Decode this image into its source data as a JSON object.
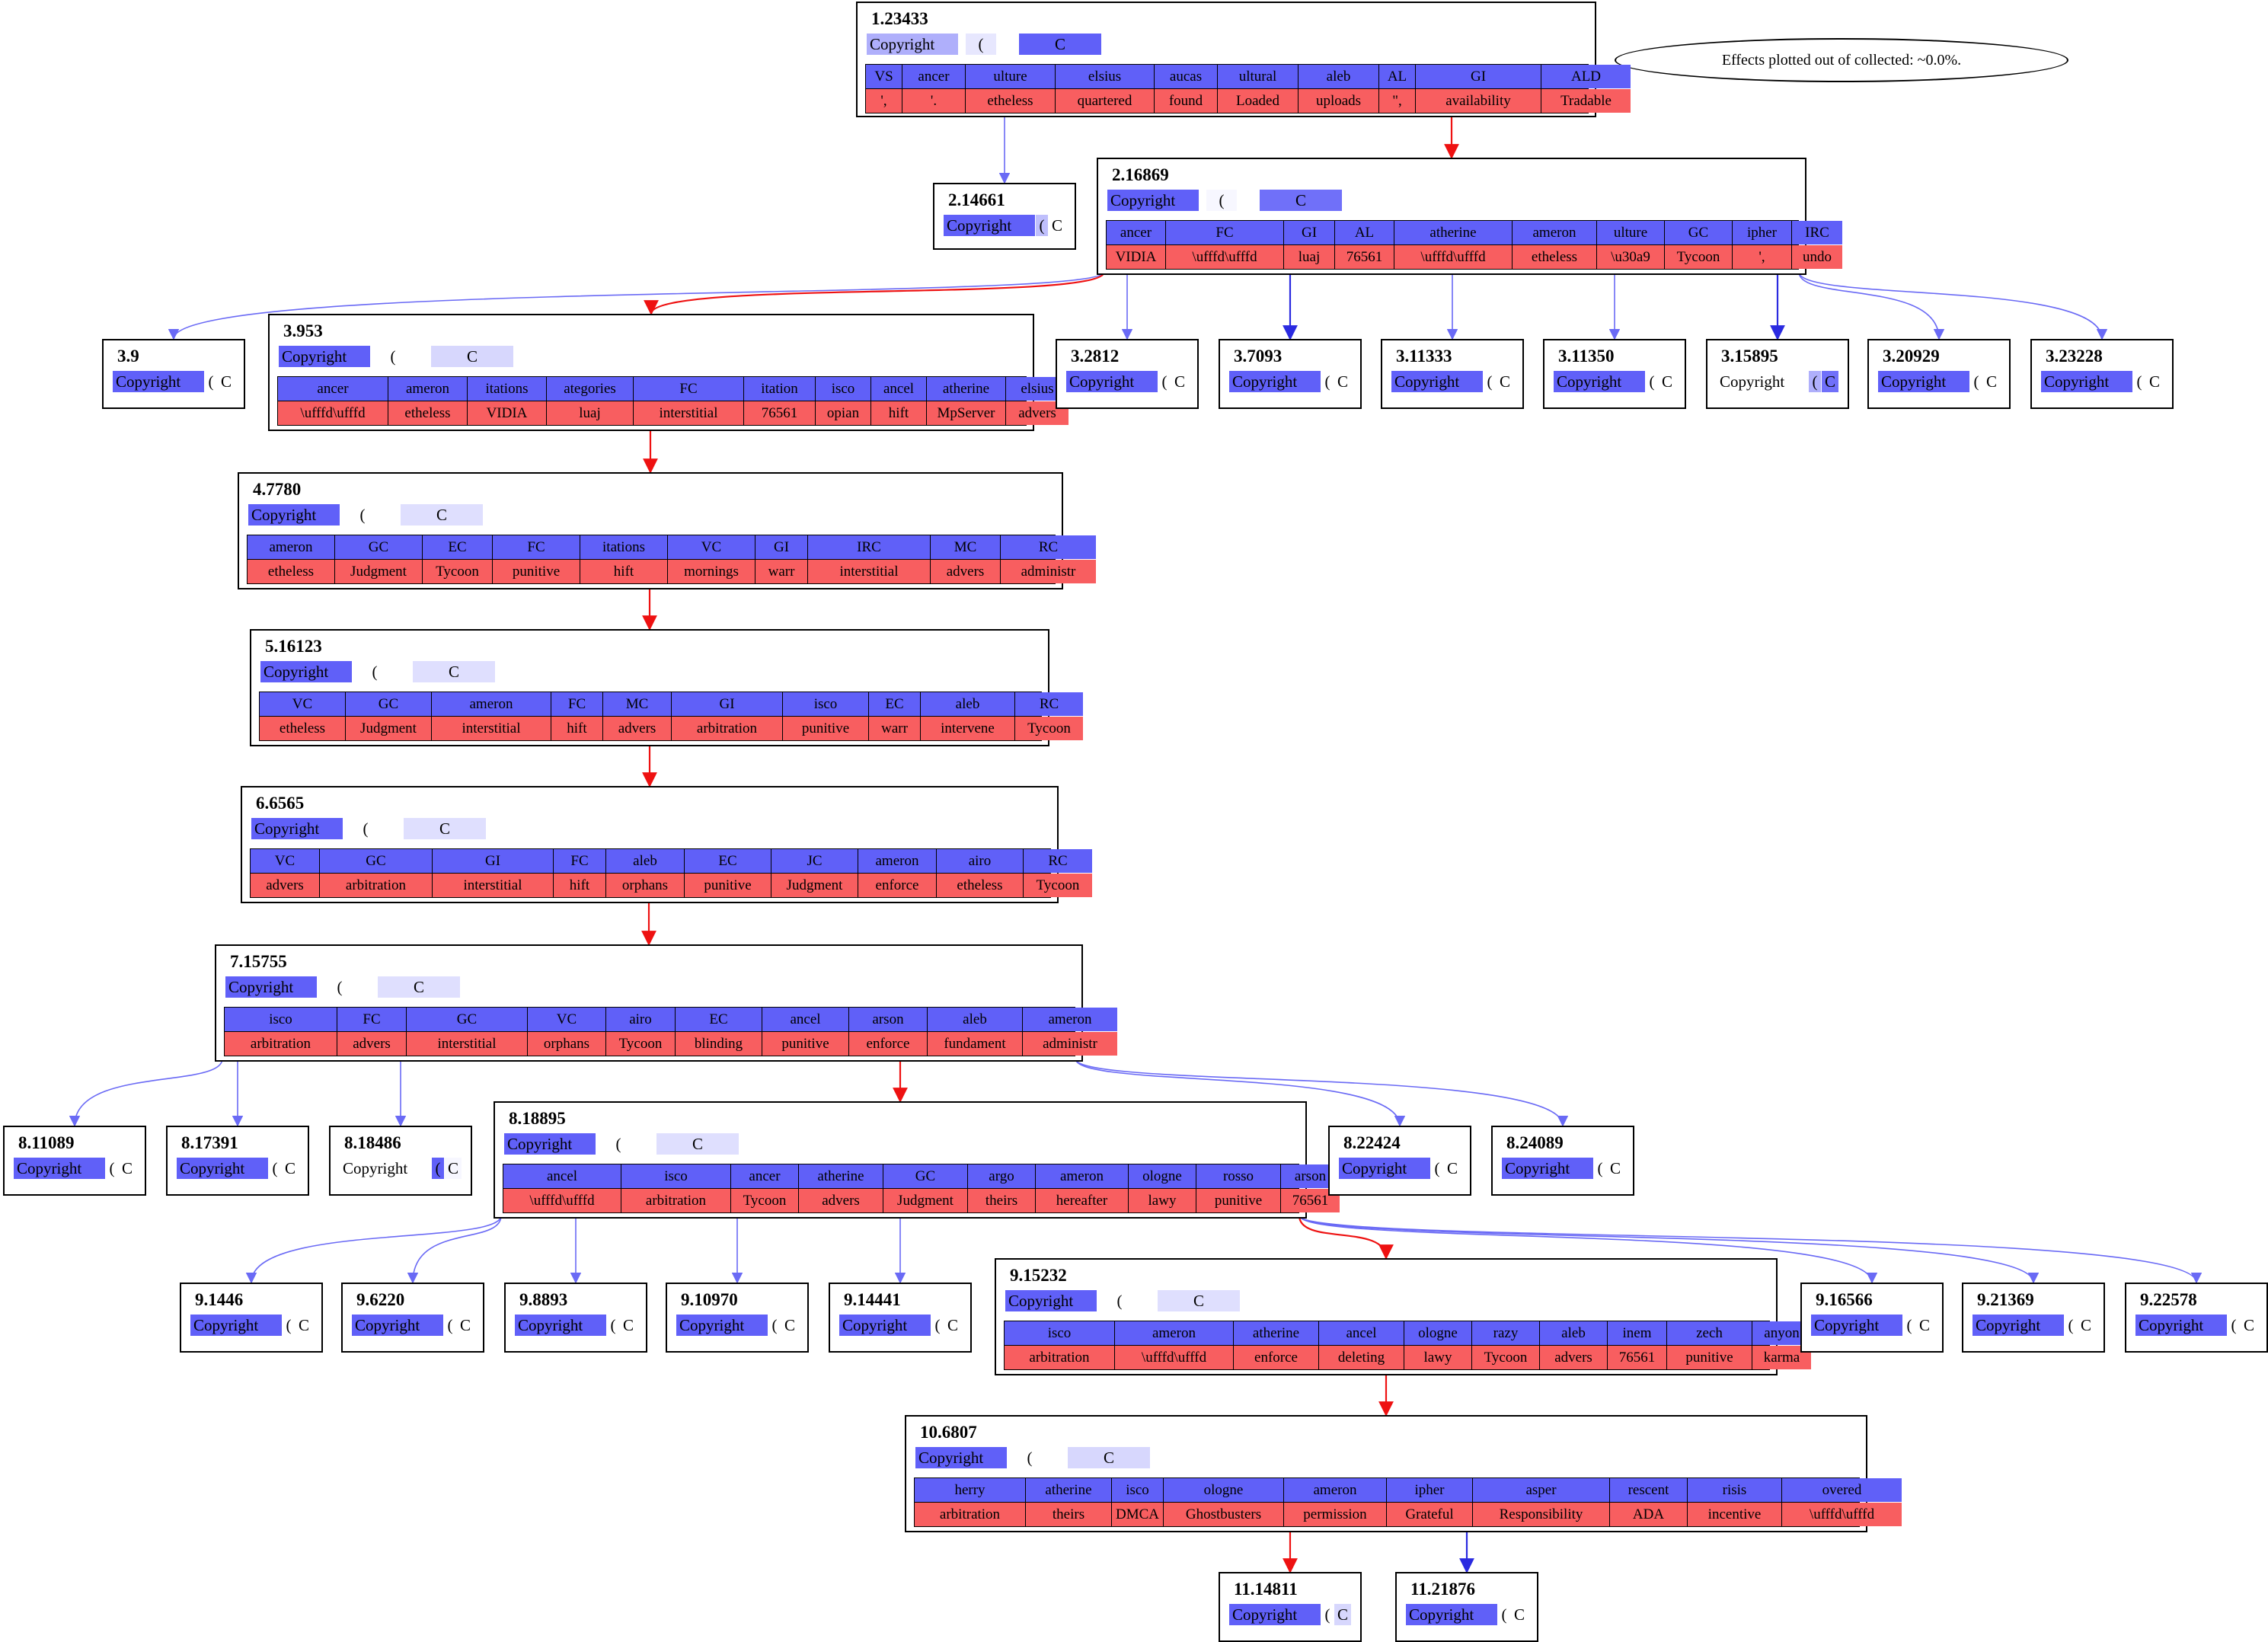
{
  "legend_text": "Effects plotted out of collected: ~0.0%.",
  "colors": {
    "blue_edge": "#6a6af5",
    "dark_blue_edge": "#2a2ae0",
    "red_edge": "#ee1111",
    "token_blue": "#6060f8",
    "token_red": "#f85e60"
  },
  "seq_tokens": [
    "Copyright",
    "(",
    "C"
  ],
  "nodes": [
    {
      "id": "n1",
      "label": "1.23433",
      "seq_weights": [
        0.5,
        0.15,
        1.0
      ],
      "row1": [
        "VS",
        "ancer",
        "ulture",
        "elsius",
        "aucas",
        "ultural",
        "aleb",
        "AL",
        "GI",
        "ALD"
      ],
      "row2": [
        "',",
        "'.",
        "etheless",
        "quartered",
        "found",
        "Loaded",
        "uploads",
        "\",",
        "availability",
        "Tradable"
      ]
    },
    {
      "id": "n2",
      "label": "2.14661",
      "seq_weights": [
        1.0,
        0.4,
        0.0
      ]
    },
    {
      "id": "n3",
      "label": "2.16869",
      "seq_weights": [
        1.0,
        0.05,
        0.9
      ],
      "row1": [
        "ancer",
        "FC",
        "GI",
        "AL",
        "atherine",
        "ameron",
        "ulture",
        "GC",
        "ipher",
        "IRC"
      ],
      "row2": [
        "VIDIA",
        "\\ufffd\\ufffd",
        "luaj",
        "76561",
        "\\ufffd\\ufffd",
        "etheless",
        "\\u30a9",
        "Tycoon",
        "',",
        "undo"
      ]
    },
    {
      "id": "n4",
      "label": "3.9",
      "seq_weights": [
        1.0,
        0.0,
        0.0
      ]
    },
    {
      "id": "n5",
      "label": "3.953",
      "seq_weights": [
        1.0,
        0.0,
        0.25
      ],
      "row1": [
        "ancer",
        "ameron",
        "itations",
        "ategories",
        "FC",
        "itation",
        "isco",
        "ancel",
        "atherine",
        "elsius"
      ],
      "row2": [
        "\\ufffd\\ufffd",
        "etheless",
        "VIDIA",
        "luaj",
        "interstitial",
        "76561",
        "opian",
        "hift",
        "MpServer",
        "advers"
      ]
    },
    {
      "id": "n6",
      "label": "3.2812",
      "seq_weights": [
        1.0,
        0.0,
        0.0
      ]
    },
    {
      "id": "n7",
      "label": "3.7093",
      "seq_weights": [
        1.0,
        0.0,
        0.0
      ]
    },
    {
      "id": "n8",
      "label": "3.11333",
      "seq_weights": [
        1.0,
        0.0,
        0.0
      ]
    },
    {
      "id": "n9",
      "label": "3.11350",
      "seq_weights": [
        1.0,
        0.0,
        0.0
      ]
    },
    {
      "id": "n10",
      "label": "3.15895",
      "seq_weights": [
        0.0,
        0.5,
        0.9
      ]
    },
    {
      "id": "n11",
      "label": "3.20929",
      "seq_weights": [
        1.0,
        0.0,
        0.0
      ]
    },
    {
      "id": "n12",
      "label": "3.23228",
      "seq_weights": [
        1.0,
        0.0,
        0.0
      ]
    },
    {
      "id": "n13",
      "label": "4.7780",
      "seq_weights": [
        1.0,
        0.0,
        0.2
      ],
      "row1": [
        "ameron",
        "GC",
        "EC",
        "FC",
        "itations",
        "VC",
        "GI",
        "IRC",
        "MC",
        "RC"
      ],
      "row2": [
        "etheless",
        "Judgment",
        "Tycoon",
        "punitive",
        "hift",
        "mornings",
        "warr",
        "interstitial",
        "advers",
        "administr"
      ]
    },
    {
      "id": "n14",
      "label": "5.16123",
      "seq_weights": [
        1.0,
        0.0,
        0.2
      ],
      "row1": [
        "VC",
        "GC",
        "ameron",
        "FC",
        "MC",
        "GI",
        "isco",
        "EC",
        "aleb",
        "RC"
      ],
      "row2": [
        "etheless",
        "Judgment",
        "interstitial",
        "hift",
        "advers",
        "arbitration",
        "punitive",
        "warr",
        "intervene",
        "Tycoon"
      ]
    },
    {
      "id": "n15",
      "label": "6.6565",
      "seq_weights": [
        1.0,
        0.0,
        0.2
      ],
      "row1": [
        "VC",
        "GC",
        "GI",
        "FC",
        "aleb",
        "EC",
        "JC",
        "ameron",
        "airo",
        "RC"
      ],
      "row2": [
        "advers",
        "arbitration",
        "interstitial",
        "hift",
        "orphans",
        "punitive",
        "Judgment",
        "enforce",
        "etheless",
        "Tycoon"
      ]
    },
    {
      "id": "n16",
      "label": "7.15755",
      "seq_weights": [
        1.0,
        0.0,
        0.2
      ],
      "row1": [
        "isco",
        "FC",
        "GC",
        "VC",
        "airo",
        "EC",
        "ancel",
        "arson",
        "aleb",
        "ameron"
      ],
      "row2": [
        "arbitration",
        "advers",
        "interstitial",
        "orphans",
        "Tycoon",
        "blinding",
        "punitive",
        "enforce",
        "fundament",
        "administr"
      ]
    },
    {
      "id": "n17",
      "label": "8.11089",
      "seq_weights": [
        1.0,
        0.0,
        0.0
      ]
    },
    {
      "id": "n18",
      "label": "8.17391",
      "seq_weights": [
        1.0,
        0.0,
        0.0
      ]
    },
    {
      "id": "n19",
      "label": "8.18486",
      "seq_weights": [
        0.0,
        1.0,
        0.05
      ]
    },
    {
      "id": "n20",
      "label": "8.18895",
      "seq_weights": [
        1.0,
        0.0,
        0.2
      ],
      "row1": [
        "ancel",
        "isco",
        "ancer",
        "atherine",
        "GC",
        "argo",
        "ameron",
        "ologne",
        "rosso",
        "arson"
      ],
      "row2": [
        "\\ufffd\\ufffd",
        "arbitration",
        "Tycoon",
        "advers",
        "Judgment",
        "theirs",
        "hereafter",
        "lawy",
        "punitive",
        "76561"
      ]
    },
    {
      "id": "n21",
      "label": "8.22424",
      "seq_weights": [
        1.0,
        0.0,
        0.0
      ]
    },
    {
      "id": "n22",
      "label": "8.24089",
      "seq_weights": [
        1.0,
        0.0,
        0.0
      ]
    },
    {
      "id": "n23",
      "label": "9.1446",
      "seq_weights": [
        1.0,
        0.0,
        0.0
      ]
    },
    {
      "id": "n24",
      "label": "9.6220",
      "seq_weights": [
        1.0,
        0.0,
        0.0
      ]
    },
    {
      "id": "n25",
      "label": "9.8893",
      "seq_weights": [
        1.0,
        0.0,
        0.0
      ]
    },
    {
      "id": "n26",
      "label": "9.10970",
      "seq_weights": [
        1.0,
        0.0,
        0.0
      ]
    },
    {
      "id": "n27",
      "label": "9.14441",
      "seq_weights": [
        1.0,
        0.0,
        0.0
      ]
    },
    {
      "id": "n28",
      "label": "9.15232",
      "seq_weights": [
        1.0,
        0.0,
        0.2
      ],
      "row1": [
        "isco",
        "ameron",
        "atherine",
        "ancel",
        "ologne",
        "razy",
        "aleb",
        "inem",
        "zech",
        "anyon"
      ],
      "row2": [
        "arbitration",
        "\\ufffd\\ufffd",
        "enforce",
        "deleting",
        "lawy",
        "Tycoon",
        "advers",
        "76561",
        "punitive",
        "karma"
      ]
    },
    {
      "id": "n29",
      "label": "9.16566",
      "seq_weights": [
        1.0,
        0.0,
        0.0
      ]
    },
    {
      "id": "n30",
      "label": "9.21369",
      "seq_weights": [
        1.0,
        0.0,
        0.0
      ]
    },
    {
      "id": "n31",
      "label": "9.22578",
      "seq_weights": [
        1.0,
        0.0,
        0.0
      ]
    },
    {
      "id": "n32",
      "label": "10.6807",
      "seq_weights": [
        1.0,
        0.0,
        0.25
      ],
      "row1": [
        "herry",
        "atherine",
        "isco",
        "ologne",
        "ameron",
        "ipher",
        "asper",
        "rescent",
        "risis",
        "overed"
      ],
      "row2": [
        "arbitration",
        "theirs",
        "DMCA",
        "Ghostbusters",
        "permission",
        "Grateful",
        "Responsibility",
        "ADA",
        "incentive",
        "\\ufffd\\ufffd"
      ]
    },
    {
      "id": "n33",
      "label": "11.14811",
      "seq_weights": [
        1.0,
        0.0,
        0.25
      ]
    },
    {
      "id": "n34",
      "label": "11.21876",
      "seq_weights": [
        1.0,
        0.0,
        0.0
      ]
    }
  ],
  "edges": [
    [
      "n1",
      "n2",
      "blue"
    ],
    [
      "n1",
      "n3",
      "red"
    ],
    [
      "n3",
      "n4",
      "blue"
    ],
    [
      "n3",
      "n5",
      "red"
    ],
    [
      "n3",
      "n6",
      "blue"
    ],
    [
      "n3",
      "n7",
      "darkblue"
    ],
    [
      "n3",
      "n8",
      "blue"
    ],
    [
      "n3",
      "n9",
      "blue"
    ],
    [
      "n3",
      "n10",
      "darkblue"
    ],
    [
      "n3",
      "n11",
      "blue"
    ],
    [
      "n3",
      "n12",
      "blue"
    ],
    [
      "n5",
      "n13",
      "red"
    ],
    [
      "n13",
      "n14",
      "red"
    ],
    [
      "n14",
      "n15",
      "red"
    ],
    [
      "n15",
      "n16",
      "red"
    ],
    [
      "n16",
      "n17",
      "blue"
    ],
    [
      "n16",
      "n18",
      "blue"
    ],
    [
      "n16",
      "n19",
      "blue"
    ],
    [
      "n16",
      "n20",
      "red"
    ],
    [
      "n16",
      "n21",
      "blue"
    ],
    [
      "n16",
      "n22",
      "blue"
    ],
    [
      "n20",
      "n23",
      "blue"
    ],
    [
      "n20",
      "n24",
      "blue"
    ],
    [
      "n20",
      "n25",
      "blue"
    ],
    [
      "n20",
      "n26",
      "blue"
    ],
    [
      "n20",
      "n27",
      "blue"
    ],
    [
      "n20",
      "n28",
      "red"
    ],
    [
      "n20",
      "n29",
      "blue"
    ],
    [
      "n20",
      "n30",
      "blue"
    ],
    [
      "n20",
      "n31",
      "blue"
    ],
    [
      "n28",
      "n32",
      "red"
    ],
    [
      "n32",
      "n33",
      "red"
    ],
    [
      "n32",
      "n34",
      "darkblue"
    ]
  ]
}
